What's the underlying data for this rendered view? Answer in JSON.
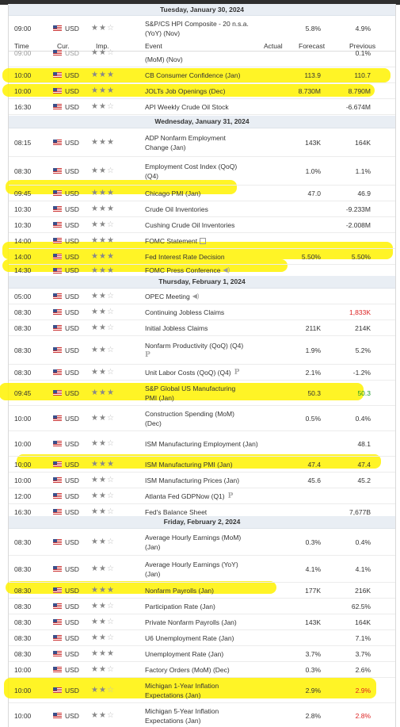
{
  "header": {
    "time": "Time",
    "cur": "Cur.",
    "imp": "Imp.",
    "event": "Event",
    "actual": "Actual",
    "forecast": "Forecast",
    "previous": "Previous"
  },
  "dates": [
    "Tuesday, January 30, 2024",
    "Wednesday, January 31, 2024",
    "Thursday, February 1, 2024",
    "Friday, February 2, 2024"
  ],
  "rows": [
    {
      "time": "09:00",
      "cur": "USD",
      "imp": 2,
      "event": "S&P/CS HPI Composite - 20 n.s.a. (YoY) (Nov)",
      "actual": "",
      "forecast": "5.8%",
      "previous": "4.9%"
    },
    {
      "time": "09:00",
      "cur": "USD",
      "imp": 2,
      "event": "S&P/CS HPI Composite - 20 n.s.a. (MoM) (Nov)",
      "actual": "",
      "forecast": "",
      "previous": "0.1%"
    },
    {
      "time": "10:00",
      "cur": "USD",
      "imp": 3,
      "event": "CB Consumer Confidence (Jan)",
      "actual": "",
      "forecast": "113.9",
      "previous": "110.7"
    },
    {
      "time": "10:00",
      "cur": "USD",
      "imp": 3,
      "event": "JOLTs Job Openings (Dec)",
      "actual": "",
      "forecast": "8.730M",
      "previous": "8.790M"
    },
    {
      "time": "16:30",
      "cur": "USD",
      "imp": 2,
      "event": "API Weekly Crude Oil Stock",
      "actual": "",
      "forecast": "",
      "previous": "-6.674M"
    },
    {
      "time": "08:15",
      "cur": "USD",
      "imp": 3,
      "event": "ADP Nonfarm Employment Change (Jan)",
      "actual": "",
      "forecast": "143K",
      "previous": "164K"
    },
    {
      "time": "08:30",
      "cur": "USD",
      "imp": 2,
      "event": "Employment Cost Index (QoQ) (Q4)",
      "actual": "",
      "forecast": "1.0%",
      "previous": "1.1%"
    },
    {
      "time": "09:45",
      "cur": "USD",
      "imp": 3,
      "event": "Chicago PMI (Jan)",
      "actual": "",
      "forecast": "47.0",
      "previous": "46.9"
    },
    {
      "time": "10:30",
      "cur": "USD",
      "imp": 3,
      "event": "Crude Oil Inventories",
      "actual": "",
      "forecast": "",
      "previous": "-9.233M"
    },
    {
      "time": "10:30",
      "cur": "USD",
      "imp": 2,
      "event": "Cushing Crude Oil Inventories",
      "actual": "",
      "forecast": "",
      "previous": "-2.008M"
    },
    {
      "time": "14:00",
      "cur": "USD",
      "imp": 3,
      "event": "FOMC Statement",
      "actual": "",
      "forecast": "",
      "previous": ""
    },
    {
      "time": "14:00",
      "cur": "USD",
      "imp": 3,
      "event": "Fed Interest Rate Decision",
      "actual": "",
      "forecast": "5.50%",
      "previous": "5.50%"
    },
    {
      "time": "14:30",
      "cur": "USD",
      "imp": 3,
      "event": "FOMC Press Conference",
      "actual": "",
      "forecast": "",
      "previous": ""
    },
    {
      "time": "05:00",
      "cur": "USD",
      "imp": 2,
      "event": "OPEC Meeting",
      "actual": "",
      "forecast": "",
      "previous": ""
    },
    {
      "time": "08:30",
      "cur": "USD",
      "imp": 2,
      "event": "Continuing Jobless Claims",
      "actual": "",
      "forecast": "",
      "previous": "1,833K"
    },
    {
      "time": "08:30",
      "cur": "USD",
      "imp": 2,
      "event": "Initial Jobless Claims",
      "actual": "",
      "forecast": "211K",
      "previous": "214K"
    },
    {
      "time": "08:30",
      "cur": "USD",
      "imp": 2,
      "event": "Nonfarm Productivity (QoQ) (Q4)",
      "actual": "",
      "forecast": "1.9%",
      "previous": "5.2%"
    },
    {
      "time": "08:30",
      "cur": "USD",
      "imp": 2,
      "event": "Unit Labor Costs (QoQ) (Q4)",
      "actual": "",
      "forecast": "2.1%",
      "previous": "-1.2%"
    },
    {
      "time": "09:45",
      "cur": "USD",
      "imp": 3,
      "event": "S&P Global US Manufacturing PMI (Jan)",
      "actual": "",
      "forecast": "50.3",
      "previous": "50.3"
    },
    {
      "time": "10:00",
      "cur": "USD",
      "imp": 2,
      "event": "Construction Spending (MoM) (Dec)",
      "actual": "",
      "forecast": "0.5%",
      "previous": "0.4%"
    },
    {
      "time": "10:00",
      "cur": "USD",
      "imp": 2,
      "event": "ISM Manufacturing Employment (Jan)",
      "actual": "",
      "forecast": "",
      "previous": "48.1"
    },
    {
      "time": "10:00",
      "cur": "USD",
      "imp": 3,
      "event": "ISM Manufacturing PMI (Jan)",
      "actual": "",
      "forecast": "47.4",
      "previous": "47.4"
    },
    {
      "time": "10:00",
      "cur": "USD",
      "imp": 2,
      "event": "ISM Manufacturing Prices (Jan)",
      "actual": "",
      "forecast": "45.6",
      "previous": "45.2"
    },
    {
      "time": "12:00",
      "cur": "USD",
      "imp": 2,
      "event": "Atlanta Fed GDPNow (Q1)",
      "actual": "",
      "forecast": "",
      "previous": ""
    },
    {
      "time": "16:30",
      "cur": "USD",
      "imp": 2,
      "event": "Fed's Balance Sheet",
      "actual": "",
      "forecast": "",
      "previous": "7,677B"
    },
    {
      "time": "08:30",
      "cur": "USD",
      "imp": 2,
      "event": "Average Hourly Earnings (MoM) (Jan)",
      "actual": "",
      "forecast": "0.3%",
      "previous": "0.4%"
    },
    {
      "time": "08:30",
      "cur": "USD",
      "imp": 2,
      "event": "Average Hourly Earnings (YoY) (Jan)",
      "actual": "",
      "forecast": "4.1%",
      "previous": "4.1%"
    },
    {
      "time": "08:30",
      "cur": "USD",
      "imp": 3,
      "event": "Nonfarm Payrolls (Jan)",
      "actual": "",
      "forecast": "177K",
      "previous": "216K"
    },
    {
      "time": "08:30",
      "cur": "USD",
      "imp": 2,
      "event": "Participation Rate (Jan)",
      "actual": "",
      "forecast": "",
      "previous": "62.5%"
    },
    {
      "time": "08:30",
      "cur": "USD",
      "imp": 2,
      "event": "Private Nonfarm Payrolls (Jan)",
      "actual": "",
      "forecast": "143K",
      "previous": "164K"
    },
    {
      "time": "08:30",
      "cur": "USD",
      "imp": 2,
      "event": "U6 Unemployment Rate (Jan)",
      "actual": "",
      "forecast": "",
      "previous": "7.1%"
    },
    {
      "time": "08:30",
      "cur": "USD",
      "imp": 3,
      "event": "Unemployment Rate (Jan)",
      "actual": "",
      "forecast": "3.7%",
      "previous": "3.7%"
    },
    {
      "time": "10:00",
      "cur": "USD",
      "imp": 2,
      "event": "Factory Orders (MoM) (Dec)",
      "actual": "",
      "forecast": "0.3%",
      "previous": "2.6%"
    },
    {
      "time": "10:00",
      "cur": "USD",
      "imp": 2,
      "event": "Michigan 1-Year Inflation Expectations (Jan)",
      "actual": "",
      "forecast": "2.9%",
      "previous": "2.9%"
    },
    {
      "time": "10:00",
      "cur": "USD",
      "imp": 2,
      "event": "Michigan 5-Year Inflation Expectations (Jan)",
      "actual": "",
      "forecast": "2.8%",
      "previous": "2.8%"
    }
  ],
  "colors": {
    "highlight": "#fff200",
    "negative": "#d22",
    "positive": "#1a9a2a"
  }
}
